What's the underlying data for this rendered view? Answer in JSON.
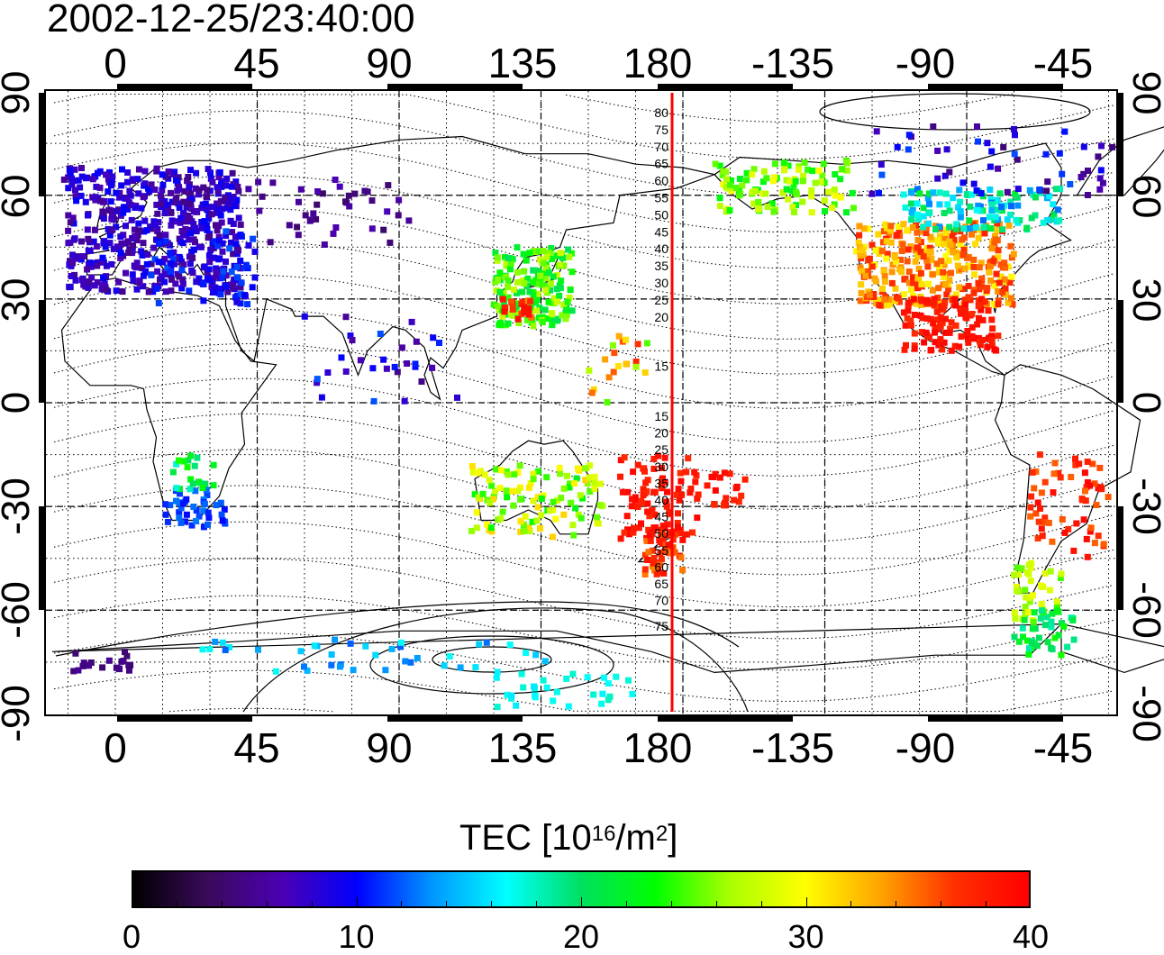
{
  "title": "2002-12-25/23:40:00",
  "map": {
    "top_lon_ticks": [
      "0",
      "45",
      "90",
      "135",
      "180",
      "-135",
      "-90",
      "-45"
    ],
    "bottom_lon_ticks": [
      "0",
      "45",
      "90",
      "135",
      "180",
      "-135",
      "-90",
      "-45"
    ],
    "left_lat_ticks": [
      "90",
      "60",
      "30",
      "0",
      "-30",
      "-60",
      "-90"
    ],
    "right_lat_ticks": [
      "90",
      "60",
      "30",
      "0",
      "-30",
      "-60",
      "-90"
    ],
    "terminator_line_color": "#ff0000",
    "north_contour_labels": [
      "80",
      "75",
      "70",
      "65",
      "60",
      "55",
      "50",
      "45",
      "40",
      "35",
      "30",
      "25",
      "20",
      "15"
    ],
    "south_contour_labels": [
      "15",
      "20",
      "25",
      "30",
      "35",
      "40",
      "45",
      "50",
      "55",
      "60",
      "65",
      "70",
      "75"
    ]
  },
  "colorbar": {
    "title_prefix": "TEC  [10",
    "title_sup1": "16",
    "title_mid": "/m",
    "title_sup2": "2",
    "title_suffix": "]",
    "min": 0,
    "max": 40,
    "tick_labels": [
      "0",
      "10",
      "20",
      "30",
      "40"
    ],
    "stops": [
      "#000000",
      "#3a0a5a",
      "#4b00b4",
      "#0000ff",
      "#0096ff",
      "#00ffff",
      "#00e060",
      "#00ff00",
      "#aaff00",
      "#ffff00",
      "#ffa500",
      "#ff3000",
      "#ff0000"
    ]
  }
}
